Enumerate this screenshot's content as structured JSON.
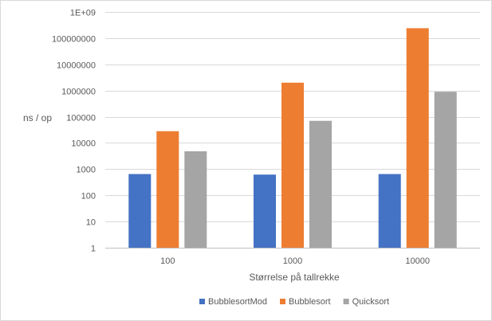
{
  "chart_data": {
    "type": "bar",
    "y_scale": "log",
    "categories": [
      "100",
      "1000",
      "10000"
    ],
    "series": [
      {
        "name": "BubblesortMod",
        "color": "#4472C4",
        "values": [
          650,
          620,
          650
        ]
      },
      {
        "name": "Bubblesort",
        "color": "#ED7D31",
        "values": [
          28000,
          2000000,
          240000000
        ]
      },
      {
        "name": "Quicksort",
        "color": "#A5A5A5",
        "values": [
          4800,
          70000,
          900000
        ]
      }
    ],
    "ylim": [
      1,
      1000000000
    ],
    "y_ticks": [
      {
        "value": 1,
        "label": "1"
      },
      {
        "value": 10,
        "label": "10"
      },
      {
        "value": 100,
        "label": "100"
      },
      {
        "value": 1000,
        "label": "1000"
      },
      {
        "value": 10000,
        "label": "10000"
      },
      {
        "value": 100000,
        "label": "100000"
      },
      {
        "value": 1000000,
        "label": "1000000"
      },
      {
        "value": 10000000,
        "label": "10000000"
      },
      {
        "value": 100000000,
        "label": "100000000"
      },
      {
        "value": 1000000000,
        "label": "1E+09"
      }
    ],
    "xlabel": "Størrelse på tallrekke",
    "ylabel": "ns / op",
    "title": "",
    "grid": true,
    "legend_position": "bottom",
    "colors": {
      "grid": "#d9d9d9",
      "axis": "#bfbfbf",
      "text": "#595959"
    }
  }
}
